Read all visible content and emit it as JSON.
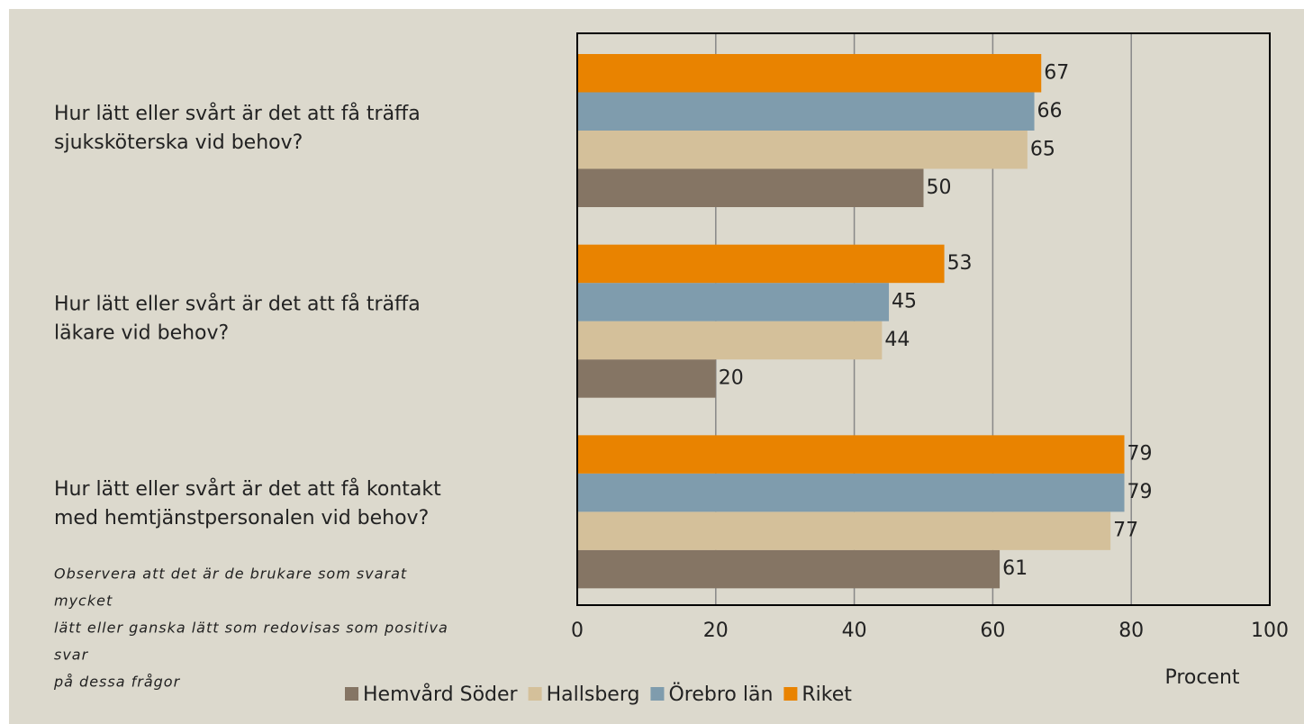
{
  "chart_data": {
    "type": "bar",
    "orientation": "horizontal",
    "categories": [
      [
        "Hur lätt eller svårt är det att få träffa",
        "sjuksköterska vid behov?"
      ],
      [
        "Hur lätt eller svårt är det att få träffa",
        "läkare vid behov?"
      ],
      [
        "Hur lätt eller svårt är det att få kontakt",
        "med hemtjänstpersonalen vid behov?"
      ]
    ],
    "series": [
      {
        "name": "Hemvård Söder",
        "color": "#857564",
        "values": [
          50,
          20,
          61
        ]
      },
      {
        "name": "Hallsberg",
        "color": "#d4c09a",
        "values": [
          65,
          44,
          77
        ]
      },
      {
        "name": "Örebro län",
        "color": "#7f9cad",
        "values": [
          66,
          45,
          79
        ]
      },
      {
        "name": "Riket",
        "color": "#e98300",
        "values": [
          67,
          53,
          79
        ]
      }
    ],
    "xlim": [
      0,
      100
    ],
    "xticks": [
      0,
      20,
      40,
      60,
      80,
      100
    ],
    "grid": true,
    "xlabel": "Procent",
    "legend": "bottom",
    "annotation": [
      "Observera att det är de brukare som svarat",
      "mycket",
      "lätt eller ganska lätt som redovisas som positiva",
      "svar",
      "på dessa frågor"
    ]
  }
}
